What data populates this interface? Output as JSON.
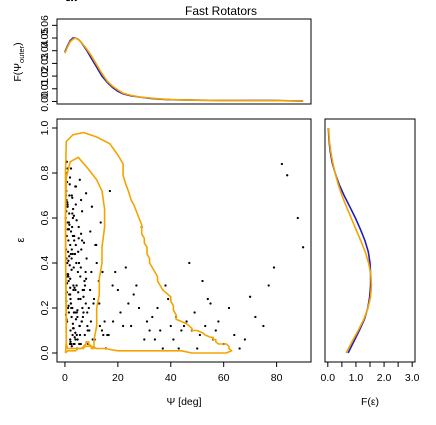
{
  "chart_data": {
    "type": "scatter",
    "title": "Fast Rotators",
    "colors": {
      "blue": "#1f1fbf",
      "orange": "#f5a300",
      "points": "#000000",
      "axis": "#000000"
    },
    "top_panel": {
      "type": "line",
      "ylabel": "F(Ψouter)",
      "ylabel_main": "F(Ψ",
      "ylabel_sub": "outer",
      "ylabel_close": ")",
      "xlim": [
        -3,
        93
      ],
      "ylim": [
        -0.002,
        0.065
      ],
      "yticks": [
        0.0,
        0.01,
        0.02,
        0.03,
        0.04,
        0.05,
        0.06
      ],
      "ytick_labels": [
        "0.00",
        "0.01",
        "0.02",
        "0.03",
        "0.04",
        "0.05",
        "0.06"
      ],
      "series": [
        {
          "color": "#1f1fbf",
          "x": [
            0,
            1,
            2,
            3,
            4,
            5,
            6,
            8,
            10,
            12,
            14,
            16,
            18,
            20,
            22,
            25,
            28,
            32,
            36,
            40,
            45,
            50,
            55,
            60,
            65,
            70,
            75,
            80,
            85,
            90
          ],
          "y": [
            0.039,
            0.044,
            0.048,
            0.05,
            0.05,
            0.049,
            0.047,
            0.041,
            0.034,
            0.027,
            0.02,
            0.015,
            0.011,
            0.008,
            0.006,
            0.0045,
            0.0035,
            0.0025,
            0.0018,
            0.0014,
            0.0012,
            0.001,
            0.0009,
            0.0008,
            0.0008,
            0.0008,
            0.0008,
            0.0007,
            0.0005,
            0.0003
          ]
        },
        {
          "color": "#f5a300",
          "x": [
            0,
            1,
            2,
            3,
            4,
            5,
            6,
            8,
            10,
            12,
            14,
            16,
            18,
            20,
            22,
            25,
            28,
            32,
            36,
            40,
            45,
            50,
            55,
            60,
            65,
            70,
            75,
            80,
            85,
            90
          ],
          "y": [
            0.038,
            0.043,
            0.047,
            0.049,
            0.05,
            0.049,
            0.047,
            0.042,
            0.036,
            0.029,
            0.022,
            0.016,
            0.012,
            0.009,
            0.0065,
            0.0048,
            0.0036,
            0.0027,
            0.002,
            0.0015,
            0.0012,
            0.001,
            0.0009,
            0.0008,
            0.0008,
            0.0007,
            0.0007,
            0.0006,
            0.0005,
            0.0004
          ]
        }
      ]
    },
    "main_panel": {
      "type": "scatter",
      "xlabel": "Ψ [deg]",
      "ylabel": "ε",
      "xlim": [
        -3,
        93
      ],
      "ylim": [
        -0.04,
        1.04
      ],
      "xticks": [
        0,
        20,
        40,
        60,
        80
      ],
      "xtick_labels": [
        "0",
        "20",
        "40",
        "60",
        "80"
      ],
      "yticks": [
        0.0,
        0.2,
        0.4,
        0.6,
        0.8,
        1.0
      ],
      "ytick_labels": [
        "0.0",
        "0.2",
        "0.4",
        "0.6",
        "0.8",
        "1.0"
      ],
      "contours": [
        {
          "color": "#f5a300",
          "x": [
            0.2,
            0.5,
            0.5,
            0.3,
            0.2,
            0.5,
            2,
            5,
            8,
            12,
            14,
            15,
            15,
            14,
            14,
            13,
            13,
            12,
            12,
            11,
            11,
            11,
            10,
            10,
            9,
            9,
            8,
            8,
            7,
            7,
            6,
            5,
            4,
            3,
            2,
            1,
            0.2
          ],
          "y": [
            0.0,
            0.05,
            0.2,
            0.4,
            0.6,
            0.78,
            0.85,
            0.87,
            0.83,
            0.77,
            0.72,
            0.64,
            0.56,
            0.47,
            0.4,
            0.33,
            0.26,
            0.2,
            0.12,
            0.06,
            0.03,
            0.02,
            0.02,
            0.03,
            0.04,
            0.05,
            0.05,
            0.04,
            0.03,
            0.02,
            0.02,
            0.02,
            0.01,
            0.01,
            0.01,
            0.01,
            0.0
          ]
        },
        {
          "color": "#f5a300",
          "x": [
            0.5,
            0.3,
            0.2,
            0.5,
            3,
            7,
            12,
            17,
            20,
            22,
            22,
            23,
            24,
            25,
            26,
            27,
            28,
            29,
            29,
            30,
            30,
            31,
            31,
            32,
            32,
            33,
            34,
            35,
            35,
            36,
            37,
            38,
            39,
            40,
            40,
            41,
            41,
            42,
            42,
            44,
            46,
            48,
            48,
            50,
            52,
            53,
            55,
            56,
            56,
            57,
            57,
            58,
            60,
            61,
            62,
            62,
            63,
            61,
            58,
            55,
            52,
            48,
            44,
            40,
            35,
            30,
            25,
            20,
            15,
            12,
            10,
            8,
            6,
            4,
            2,
            1,
            0.5
          ],
          "y": [
            0.04,
            0.4,
            0.8,
            0.94,
            0.97,
            0.98,
            0.96,
            0.93,
            0.88,
            0.84,
            0.79,
            0.75,
            0.72,
            0.68,
            0.66,
            0.63,
            0.6,
            0.57,
            0.53,
            0.51,
            0.49,
            0.47,
            0.44,
            0.42,
            0.4,
            0.38,
            0.36,
            0.34,
            0.32,
            0.3,
            0.28,
            0.27,
            0.26,
            0.25,
            0.23,
            0.21,
            0.19,
            0.17,
            0.15,
            0.14,
            0.13,
            0.11,
            0.1,
            0.1,
            0.09,
            0.08,
            0.07,
            0.07,
            0.06,
            0.06,
            0.05,
            0.04,
            0.04,
            0.04,
            0.03,
            0.02,
            0.01,
            0.0,
            0.0,
            0.0,
            0.0,
            0.0,
            0.01,
            0.01,
            0.01,
            0.01,
            0.01,
            0.01,
            0.02,
            0.02,
            0.03,
            0.03,
            0.02,
            0.02,
            0.02,
            0.02,
            0.04
          ]
        }
      ],
      "points_x": [
        0.5,
        1.0,
        1.5,
        2.0,
        0.8,
        2.5,
        3.0,
        1.2,
        3.5,
        4.0,
        0.6,
        2.2,
        5.0,
        1.8,
        4.5,
        6.0,
        2.8,
        3.2,
        7.0,
        1.1,
        5.5,
        0.9,
        8.0,
        2.6,
        4.2,
        6.5,
        1.6,
        9.0,
        3.8,
        0.7,
        2.1,
        10.0,
        5.2,
        1.4,
        7.5,
        3.1,
        0.4,
        11.0,
        4.8,
        2.3,
        6.8,
        1.9,
        12.0,
        3.6,
        0.3,
        8.5,
        2.9,
        5.8,
        1.3,
        13.0,
        4.1,
        0.8,
        9.5,
        2.4,
        6.2,
        3.4,
        1.7,
        14.0,
        5.1,
        0.6,
        7.8,
        2.7,
        10.5,
        4.4,
        1.0,
        15.0,
        3.3,
        6.6,
        2.0,
        11.5,
        0.5,
        5.6,
        8.8,
        1.5,
        3.9,
        16.0,
        2.2,
        7.2,
        4.7,
        0.9,
        12.5,
        6.1,
        1.2,
        17.0,
        3.0,
        9.2,
        2.5,
        5.3,
        18.0,
        0.7,
        4.0,
        13.5,
        7.0,
        1.8,
        19.0,
        3.7,
        2.8,
        10.2,
        6.4,
        20.0,
        1.1,
        4.9,
        14.5,
        2.3,
        8.2,
        21.0,
        3.5,
        0.4,
        5.9,
        22.0,
        11.8,
        2.0,
        7.4,
        23.0,
        1.6,
        4.3,
        15.5,
        24.0,
        3.2,
        9.8,
        25.0,
        0.8,
        6.0,
        26.0,
        2.6,
        12.8,
        27.0,
        4.6,
        1.3,
        28.0,
        8.6,
        3.8,
        29.0,
        16.5,
        30.0,
        2.1,
        5.4,
        31.0,
        10.8,
        32.0,
        1.0,
        7.6,
        33.0,
        4.1,
        34.0,
        13.2,
        35.0,
        2.9,
        36.0,
        6.7,
        37.0,
        18.2,
        38.0,
        3.3,
        39.0,
        9.6,
        40.0,
        1.5,
        41.0,
        5.7,
        42.0,
        14.2,
        43.0,
        2.4,
        44.0,
        7.9,
        45.0,
        46.0,
        4.5,
        47.0,
        11.2,
        48.0,
        1.9,
        49.0,
        50.0,
        6.3,
        51.0,
        52.0,
        53.0,
        3.6,
        54.0,
        55.0,
        56.0,
        8.4,
        57.0,
        58.0,
        60.0,
        62.0,
        64.0,
        66.0,
        68.0,
        70.0,
        72.0,
        75.0,
        77.0,
        79.0,
        82.0,
        84.0,
        88.0,
        90.0,
        2.0,
        1.4,
        0.9,
        3.1,
        4.2,
        2.5,
        1.7,
        5.0,
        0.6,
        2.8,
        1.2,
        3.9,
        6.1,
        0.8,
        2.3,
        4.7,
        1.6,
        3.4,
        0.5,
        2.1,
        5.6,
        1.0,
        3.0,
        7.2,
        0.7,
        2.6,
        4.4,
        1.3,
        3.7,
        8.0,
        0.4,
        2.0,
        5.2,
        1.8,
        3.3,
        6.5,
        0.9,
        2.7,
        4.1,
        1.5
      ],
      "points_y": [
        0.72,
        0.65,
        0.55,
        0.48,
        0.8,
        0.42,
        0.6,
        0.35,
        0.52,
        0.28,
        0.68,
        0.22,
        0.45,
        0.75,
        0.18,
        0.38,
        0.62,
        0.3,
        0.25,
        0.58,
        0.12,
        0.4,
        0.33,
        0.7,
        0.15,
        0.5,
        0.26,
        0.2,
        0.44,
        0.85,
        0.1,
        0.36,
        0.56,
        0.32,
        0.08,
        0.64,
        0.46,
        0.24,
        0.06,
        0.54,
        0.16,
        0.78,
        0.4,
        0.29,
        0.6,
        0.12,
        0.08,
        0.34,
        0.5,
        0.22,
        0.66,
        0.14,
        0.28,
        0.04,
        0.46,
        0.18,
        0.7,
        0.1,
        0.24,
        0.42,
        0.36,
        0.56,
        0.06,
        0.3,
        0.82,
        0.14,
        0.38,
        0.2,
        0.26,
        0.48,
        0.63,
        0.12,
        0.04,
        0.58,
        0.74,
        0.08,
        0.44,
        0.28,
        0.16,
        0.34,
        0.22,
        0.68,
        0.2,
        0.72,
        0.52,
        0.1,
        0.16,
        0.4,
        0.3,
        0.52,
        0.06,
        0.58,
        0.18,
        0.26,
        0.36,
        0.44,
        0.2,
        0.65,
        0.14,
        0.28,
        0.55,
        0.36,
        0.08,
        0.22,
        0.42,
        0.18,
        0.5,
        0.7,
        0.24,
        0.12,
        0.48,
        0.06,
        0.32,
        0.38,
        0.62,
        0.4,
        0.02,
        0.22,
        0.28,
        0.14,
        0.12,
        0.76,
        0.04,
        0.26,
        0.46,
        0.32,
        0.3,
        0.02,
        0.34,
        0.2,
        0.1,
        0.18,
        0.56,
        0.08,
        0.06,
        0.24,
        0.04,
        0.14,
        0.22,
        0.1,
        0.66,
        0.3,
        0.16,
        0.48,
        0.06,
        0.12,
        0.2,
        0.44,
        0.1,
        0.28,
        0.02,
        0.14,
        0.3,
        0.04,
        0.24,
        0.54,
        0.12,
        0.18,
        0.06,
        0.08,
        0.16,
        0.36,
        0.02,
        0.2,
        0.1,
        0.22,
        0.12,
        0.14,
        0.08,
        0.4,
        0.06,
        0.1,
        0.04,
        0.18,
        0.02,
        0.14,
        0.08,
        0.32,
        0.12,
        0.04,
        0.24,
        0.22,
        0.06,
        0.18,
        0.1,
        0.14,
        0.04,
        0.2,
        0.08,
        0.02,
        0.06,
        0.25,
        0.16,
        0.12,
        0.3,
        0.38,
        0.84,
        0.79,
        0.6,
        0.47,
        0.33,
        0.21,
        0.67,
        0.11,
        0.74,
        0.37,
        0.57,
        0.27,
        0.15,
        0.69,
        0.45,
        0.09,
        0.53,
        0.31,
        0.82,
        0.19,
        0.43,
        0.61,
        0.23,
        0.05,
        0.77,
        0.35,
        0.13,
        0.49,
        0.27,
        0.03,
        0.59,
        0.41,
        0.07,
        0.71,
        0.17,
        0.29,
        0.51,
        0.39,
        0.11,
        0.63
      ]
    },
    "right_panel": {
      "type": "line",
      "xlabel": "F(ε)",
      "xlim": [
        -0.1,
        3.1
      ],
      "ylim": [
        -0.04,
        1.04
      ],
      "xticks": [
        0.0,
        0.5,
        1.0,
        1.5,
        2.0,
        2.5,
        3.0
      ],
      "xtick_labels": [
        "0.0",
        "0.5",
        "1.0",
        "1.5",
        "2.0",
        "2.5",
        "3.0"
      ],
      "series": [
        {
          "color": "#1f1fbf",
          "y": [
            0.0,
            0.05,
            0.1,
            0.15,
            0.2,
            0.25,
            0.3,
            0.35,
            0.4,
            0.45,
            0.5,
            0.55,
            0.6,
            0.65,
            0.7,
            0.75,
            0.8,
            0.85,
            0.9,
            0.95,
            1.0
          ],
          "x": [
            0.72,
            0.92,
            1.12,
            1.3,
            1.42,
            1.49,
            1.52,
            1.52,
            1.5,
            1.44,
            1.32,
            1.16,
            0.98,
            0.78,
            0.58,
            0.4,
            0.26,
            0.15,
            0.08,
            0.04,
            0.02
          ]
        },
        {
          "color": "#f5a300",
          "y": [
            0.0,
            0.05,
            0.1,
            0.15,
            0.2,
            0.25,
            0.3,
            0.35,
            0.4,
            0.45,
            0.5,
            0.55,
            0.6,
            0.65,
            0.7,
            0.75,
            0.8,
            0.85,
            0.9,
            0.95,
            1.0
          ],
          "x": [
            0.65,
            0.86,
            1.08,
            1.28,
            1.43,
            1.52,
            1.55,
            1.53,
            1.45,
            1.33,
            1.17,
            1.0,
            0.83,
            0.66,
            0.5,
            0.37,
            0.26,
            0.17,
            0.1,
            0.05,
            0.03
          ]
        }
      ]
    }
  }
}
